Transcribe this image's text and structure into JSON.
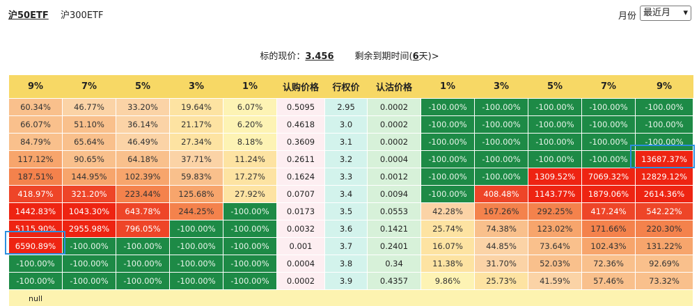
{
  "tabs": [
    "沪50ETF",
    "沪300ETF"
  ],
  "month_label": "月份",
  "month_select": "最近月",
  "info": {
    "price_label": "标的现价：",
    "price": "3.456",
    "expiry_prefix": "剩余到期时间(",
    "expiry_days": "6",
    "expiry_suffix": "天)>"
  },
  "table": {
    "headers": [
      "9%",
      "7%",
      "5%",
      "3%",
      "1%",
      "认购价格",
      "行权价",
      "认沽价格",
      "1%",
      "3%",
      "5%",
      "7%",
      "9%"
    ],
    "rows": [
      [
        "60.34%",
        "46.77%",
        "33.20%",
        "19.64%",
        "6.07%",
        "0.5095",
        "2.95",
        "0.0002",
        "-100.00%",
        "-100.00%",
        "-100.00%",
        "-100.00%",
        "-100.00%"
      ],
      [
        "66.07%",
        "51.10%",
        "36.14%",
        "21.17%",
        "6.20%",
        "0.4618",
        "3.0",
        "0.0002",
        "-100.00%",
        "-100.00%",
        "-100.00%",
        "-100.00%",
        "-100.00%"
      ],
      [
        "84.79%",
        "65.64%",
        "46.49%",
        "27.34%",
        "8.18%",
        "0.3609",
        "3.1",
        "0.0002",
        "-100.00%",
        "-100.00%",
        "-100.00%",
        "-100.00%",
        "-100.00%"
      ],
      [
        "117.12%",
        "90.65%",
        "64.18%",
        "37.71%",
        "11.24%",
        "0.2611",
        "3.2",
        "0.0004",
        "-100.00%",
        "-100.00%",
        "-100.00%",
        "-100.00%",
        "13687.37%"
      ],
      [
        "187.51%",
        "144.95%",
        "102.39%",
        "59.83%",
        "17.27%",
        "0.1624",
        "3.3",
        "0.0012",
        "-100.00%",
        "-100.00%",
        "1309.52%",
        "7069.32%",
        "12829.12%"
      ],
      [
        "418.97%",
        "321.20%",
        "223.44%",
        "125.68%",
        "27.92%",
        "0.0707",
        "3.4",
        "0.0094",
        "-100.00%",
        "408.48%",
        "1143.77%",
        "1879.06%",
        "2614.36%"
      ],
      [
        "1442.83%",
        "1043.30%",
        "643.78%",
        "244.25%",
        "-100.00%",
        "0.0173",
        "3.5",
        "0.0553",
        "42.28%",
        "167.26%",
        "292.25%",
        "417.24%",
        "542.22%"
      ],
      [
        "5115.90%",
        "2955.98%",
        "796.05%",
        "-100.00%",
        "-100.00%",
        "0.0032",
        "3.6",
        "0.1421",
        "25.74%",
        "74.38%",
        "123.02%",
        "171.66%",
        "220.30%"
      ],
      [
        "6590.89%",
        "-100.00%",
        "-100.00%",
        "-100.00%",
        "-100.00%",
        "0.001",
        "3.7",
        "0.2401",
        "16.07%",
        "44.85%",
        "73.64%",
        "102.43%",
        "131.22%"
      ],
      [
        "-100.00%",
        "-100.00%",
        "-100.00%",
        "-100.00%",
        "-100.00%",
        "0.0004",
        "3.8",
        "0.34",
        "11.38%",
        "31.70%",
        "52.03%",
        "72.36%",
        "92.69%"
      ],
      [
        "-100.00%",
        "-100.00%",
        "-100.00%",
        "-100.00%",
        "-100.00%",
        "0.0002",
        "3.9",
        "0.4357",
        "9.86%",
        "25.73%",
        "41.59%",
        "57.46%",
        "73.32%"
      ]
    ],
    "footer": "null"
  }
}
